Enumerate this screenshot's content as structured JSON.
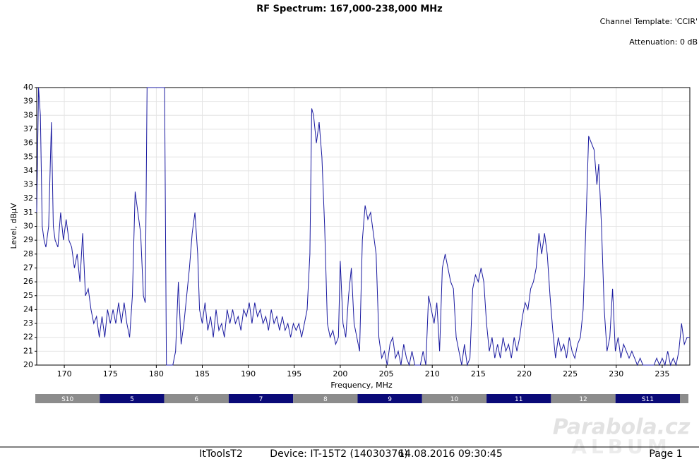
{
  "chart_data": {
    "type": "line",
    "title": "RF Spectrum: 167,000-238,000 MHz",
    "subtitle_lines": [
      "Channel Template: 'CCIR'",
      "Attenuation: 0 dB"
    ],
    "x_label": "Frequency, MHz",
    "y_label": "Level, dBµV",
    "color": "#1a1aa0",
    "grid": true,
    "xlim": [
      167,
      238
    ],
    "xticks": [
      170,
      175,
      180,
      185,
      190,
      195,
      200,
      205,
      210,
      215,
      220,
      225,
      230,
      235
    ],
    "ylim": [
      20,
      40
    ],
    "yticks": [
      20,
      21,
      22,
      23,
      24,
      25,
      26,
      27,
      28,
      29,
      30,
      31,
      32,
      33,
      34,
      35,
      36,
      37,
      38,
      39,
      40
    ],
    "channels": [
      "S10",
      "5",
      "6",
      "7",
      "8",
      "9",
      "10",
      "11",
      "12",
      "S11"
    ],
    "x": [
      167.0,
      167.2,
      167.4,
      167.6,
      167.8,
      168.0,
      168.3,
      168.6,
      168.8,
      169.0,
      169.3,
      169.6,
      169.9,
      170.2,
      170.5,
      170.8,
      171.1,
      171.4,
      171.7,
      172.0,
      172.3,
      172.6,
      172.9,
      173.2,
      173.5,
      173.8,
      174.1,
      174.4,
      174.7,
      175.0,
      175.3,
      175.6,
      175.9,
      176.2,
      176.5,
      176.8,
      177.1,
      177.4,
      177.7,
      178.0,
      178.3,
      178.6,
      178.8,
      179.0,
      179.3,
      179.5,
      180.0,
      180.5,
      180.9,
      181.1,
      181.5,
      181.8,
      182.1,
      182.4,
      182.7,
      183.0,
      183.3,
      183.6,
      183.9,
      184.2,
      184.5,
      184.7,
      185.0,
      185.3,
      185.6,
      185.9,
      186.2,
      186.5,
      186.8,
      187.1,
      187.4,
      187.7,
      188.0,
      188.3,
      188.6,
      188.9,
      189.2,
      189.5,
      189.8,
      190.1,
      190.4,
      190.7,
      191.0,
      191.3,
      191.6,
      191.9,
      192.2,
      192.5,
      192.8,
      193.1,
      193.4,
      193.7,
      194.0,
      194.3,
      194.6,
      194.9,
      195.2,
      195.5,
      195.8,
      196.1,
      196.4,
      196.7,
      196.9,
      197.1,
      197.4,
      197.7,
      198.0,
      198.3,
      198.6,
      198.9,
      199.2,
      199.5,
      199.8,
      200.0,
      200.3,
      200.6,
      200.9,
      201.2,
      201.5,
      201.8,
      202.1,
      202.4,
      202.7,
      203.0,
      203.3,
      203.6,
      203.9,
      204.2,
      204.5,
      204.8,
      205.1,
      205.4,
      205.7,
      206.0,
      206.3,
      206.6,
      206.9,
      207.2,
      207.5,
      207.8,
      208.1,
      208.4,
      208.7,
      209.0,
      209.3,
      209.6,
      209.9,
      210.2,
      210.5,
      210.8,
      211.1,
      211.4,
      211.7,
      212.0,
      212.3,
      212.6,
      212.9,
      213.2,
      213.5,
      213.8,
      214.1,
      214.4,
      214.7,
      215.0,
      215.3,
      215.6,
      215.9,
      216.2,
      216.5,
      216.8,
      217.1,
      217.4,
      217.7,
      218.0,
      218.3,
      218.6,
      218.9,
      219.2,
      219.5,
      219.8,
      220.1,
      220.4,
      220.7,
      221.0,
      221.3,
      221.6,
      221.9,
      222.2,
      222.5,
      222.8,
      223.1,
      223.4,
      223.7,
      224.0,
      224.3,
      224.6,
      224.9,
      225.2,
      225.5,
      225.8,
      226.1,
      226.4,
      226.7,
      227.0,
      227.3,
      227.6,
      227.9,
      228.1,
      228.4,
      228.7,
      229.0,
      229.3,
      229.6,
      229.9,
      230.2,
      230.5,
      230.8,
      231.1,
      231.4,
      231.7,
      232.0,
      232.3,
      232.6,
      232.9,
      233.2,
      233.5,
      233.8,
      234.1,
      234.4,
      234.7,
      235.0,
      235.3,
      235.6,
      235.9,
      236.2,
      236.5,
      236.8,
      237.1,
      237.4,
      237.7,
      238.0
    ],
    "values": [
      31,
      40,
      38,
      30,
      29,
      28.5,
      30,
      37.5,
      30,
      29,
      28.5,
      31,
      29,
      30.5,
      29,
      28.5,
      27,
      28,
      26,
      29.5,
      25,
      25.5,
      24,
      23,
      23.5,
      22,
      23.5,
      22,
      24,
      23,
      24,
      23,
      24.5,
      23,
      24.5,
      23,
      22,
      25,
      32.5,
      31,
      29.5,
      25,
      24.5,
      40,
      40,
      40,
      40,
      40,
      40,
      20,
      20,
      20,
      21,
      26,
      21.5,
      23,
      25,
      27,
      29.5,
      31,
      28,
      24,
      23,
      24.5,
      22.5,
      23.5,
      22,
      24,
      22.5,
      23,
      22,
      24,
      23,
      24,
      23,
      23.5,
      22.5,
      24,
      23.5,
      24.5,
      23,
      24.5,
      23.5,
      24,
      23,
      23.5,
      22.5,
      24,
      23,
      23.5,
      22.5,
      23.5,
      22.5,
      23,
      22,
      23,
      22.5,
      23,
      22,
      23,
      24,
      28,
      38.5,
      38,
      36,
      37.5,
      35,
      30,
      23,
      22,
      22.5,
      21.5,
      22,
      27.5,
      23,
      22,
      25,
      27,
      23,
      22,
      21,
      29,
      31.5,
      30.5,
      31,
      29.5,
      28,
      22,
      20.5,
      21,
      20,
      21.5,
      22,
      20.5,
      21,
      20,
      21.5,
      20.5,
      20,
      21,
      20,
      20,
      20,
      21,
      20,
      25,
      24,
      23,
      24.5,
      21,
      27,
      28,
      27,
      26,
      25.5,
      22,
      21,
      20,
      21.5,
      20,
      20.5,
      25.5,
      26.5,
      26,
      27,
      26,
      23,
      21,
      22,
      20.5,
      21.5,
      20.5,
      22,
      21,
      21.5,
      20.5,
      22,
      21,
      22,
      23.5,
      24.5,
      24,
      25.5,
      26,
      27,
      29.5,
      28,
      29.5,
      28,
      25,
      22.5,
      20.5,
      22,
      21,
      21.5,
      20.5,
      22,
      21,
      20.5,
      21.5,
      22,
      24,
      30,
      36.5,
      36,
      35.5,
      33,
      34.5,
      30,
      24,
      21,
      22,
      25.5,
      21,
      22,
      20.5,
      21.5,
      21,
      20.5,
      21,
      20.5,
      20,
      20.5,
      20,
      20,
      20,
      20,
      20,
      20.5,
      20,
      20.5,
      20,
      21,
      20,
      20.5,
      20,
      21,
      23,
      21.5,
      22,
      22
    ]
  },
  "footer": {
    "app": "ItToolsT2",
    "device": "Device: IT-15T2 (14030376)",
    "timestamp": "14.08.2016 09:30:45",
    "page": "Page 1"
  },
  "watermark": {
    "line1": "Parabola.cz",
    "line2": "ALBUM"
  }
}
